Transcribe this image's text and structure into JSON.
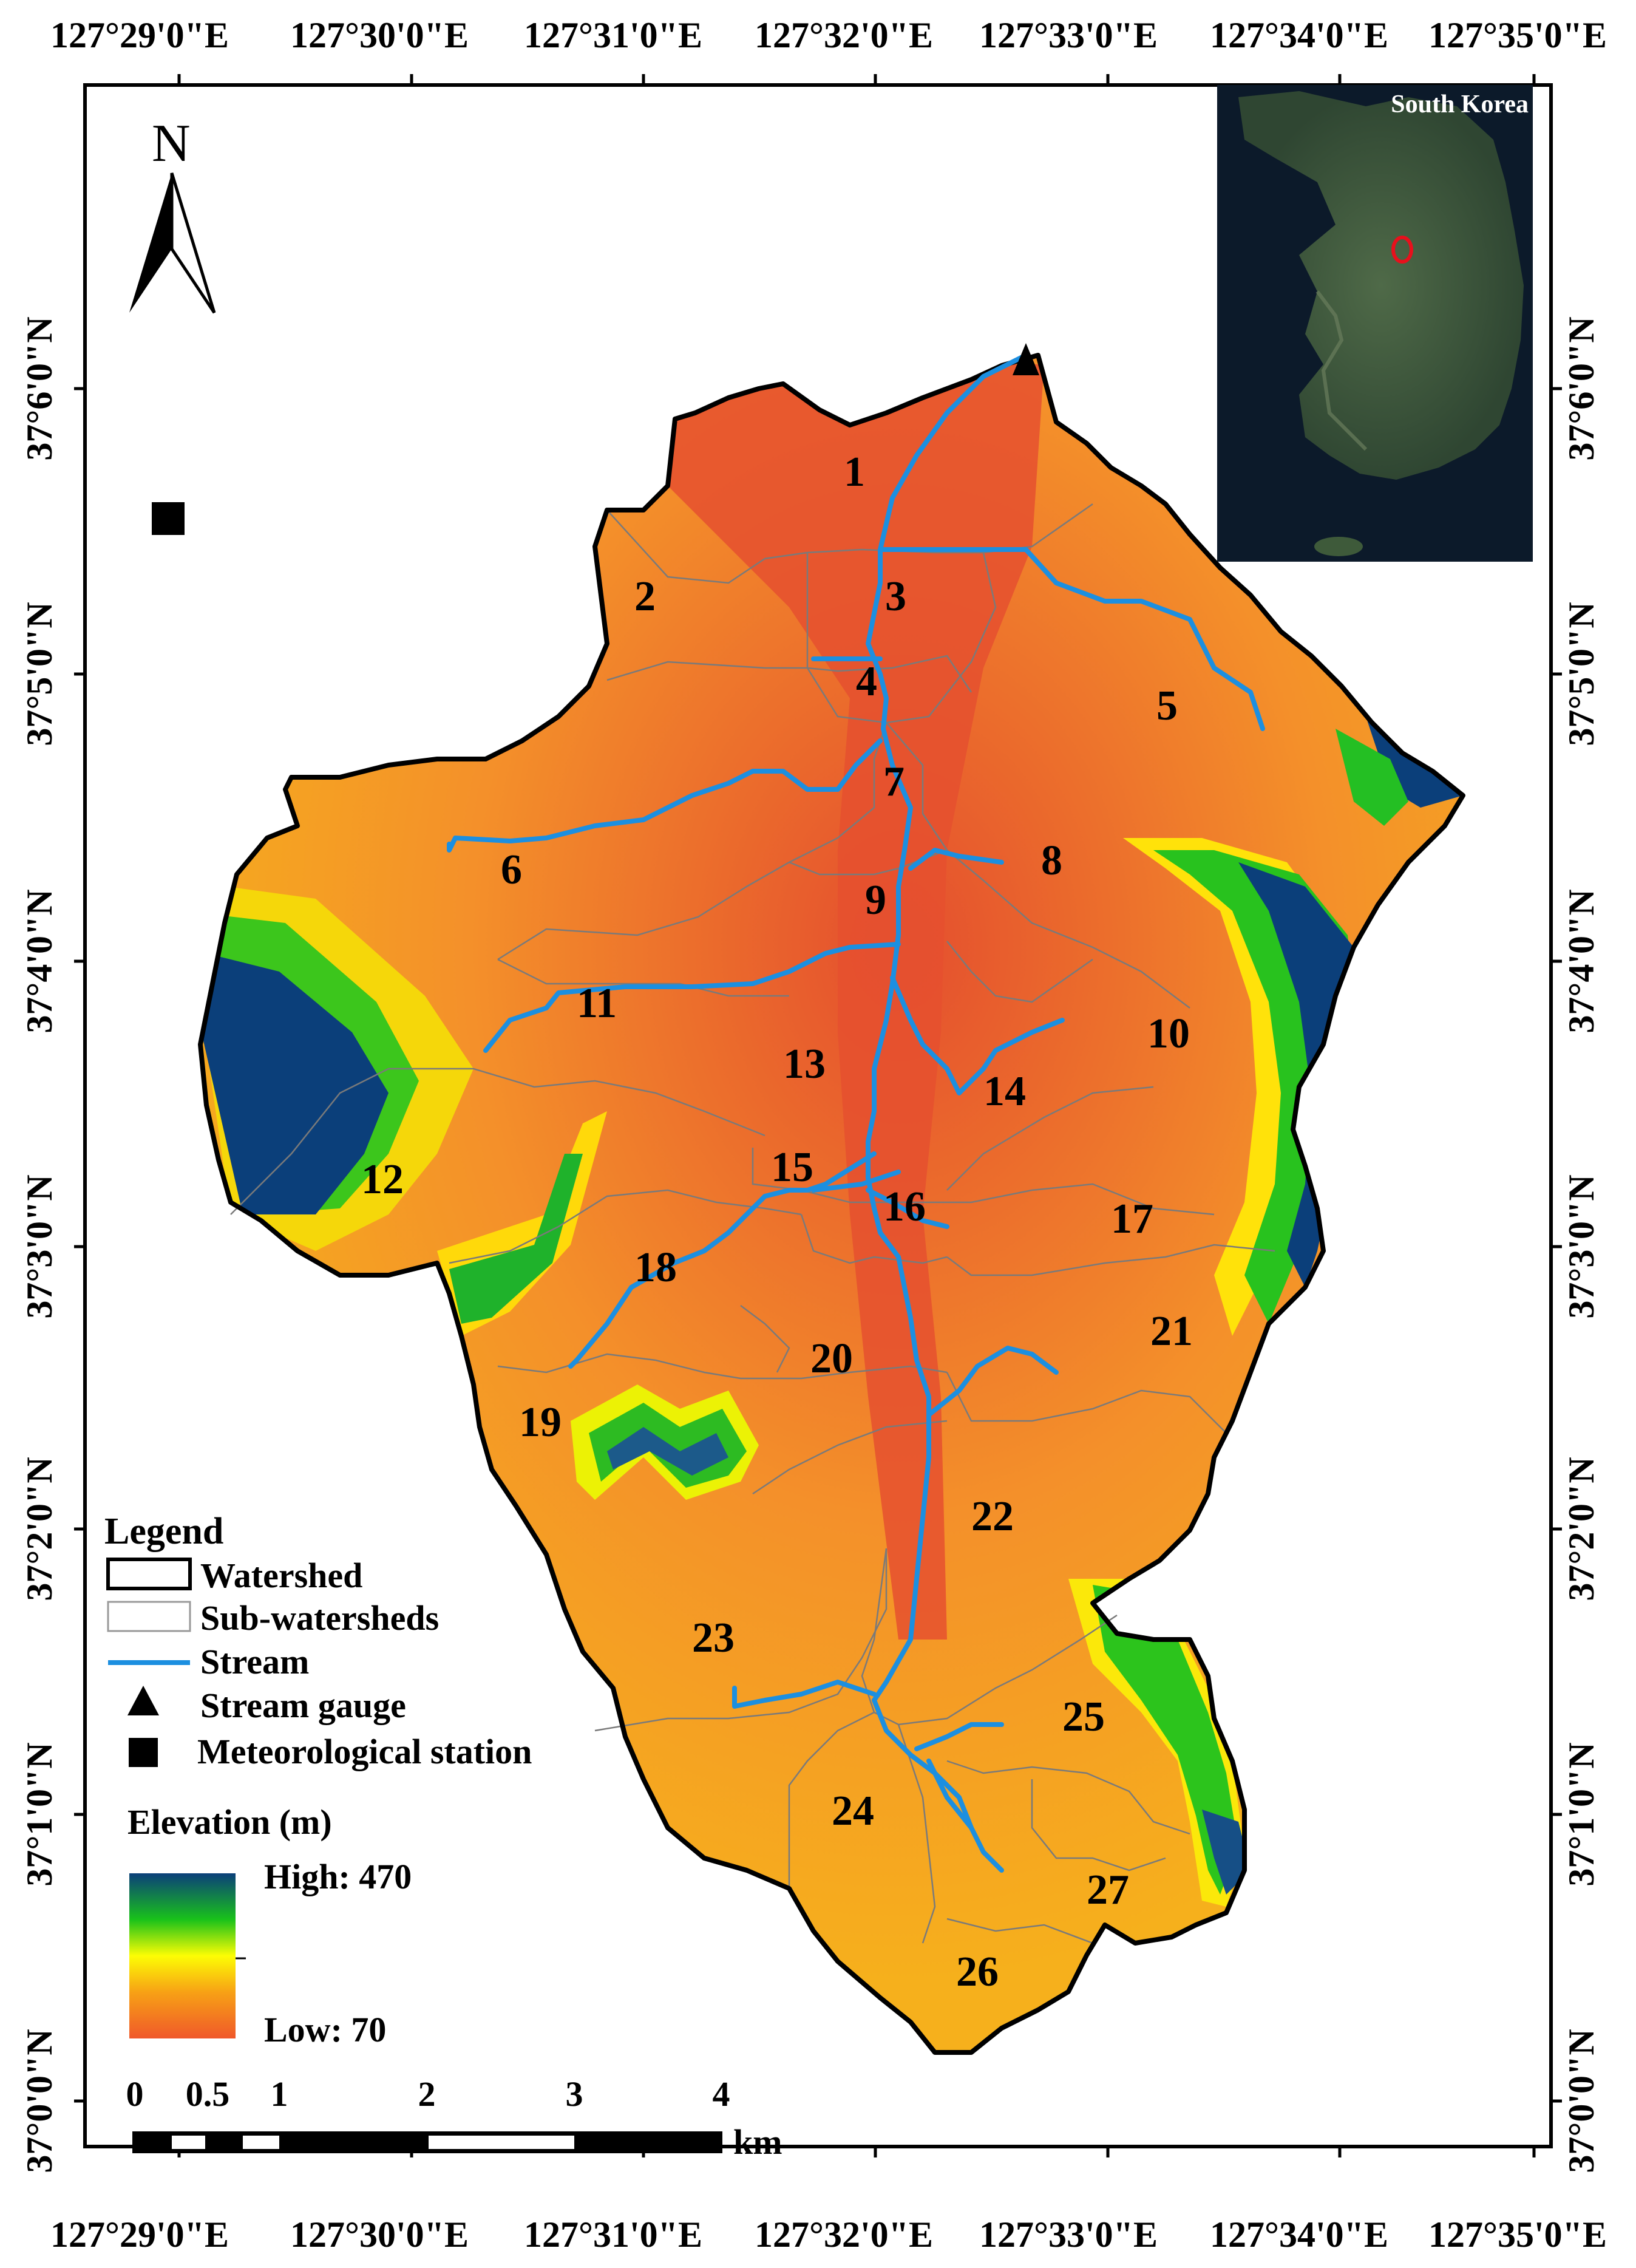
{
  "longitude_labels": [
    "127°29'0\"E",
    "127°30'0\"E",
    "127°31'0\"E",
    "127°32'0\"E",
    "127°33'0\"E",
    "127°34'0\"E",
    "127°35'0\"E"
  ],
  "latitude_labels": [
    "37°6'0\"N",
    "37°5'0\"N",
    "37°4'0\"N",
    "37°3'0\"N",
    "37°2'0\"N",
    "37°1'0\"N",
    "37°0'0\"N"
  ],
  "north_arrow_letter": "N",
  "inset": {
    "title": "South Korea",
    "marker_color": "#e8101c"
  },
  "subwatersheds": [
    "1",
    "2",
    "3",
    "4",
    "5",
    "6",
    "7",
    "8",
    "9",
    "10",
    "11",
    "12",
    "13",
    "14",
    "15",
    "16",
    "17",
    "18",
    "19",
    "20",
    "21",
    "22",
    "23",
    "24",
    "25",
    "26",
    "27"
  ],
  "legend": {
    "title": "Legend",
    "items": [
      {
        "label": "Watershed",
        "icon": "watershed-outline-swatch"
      },
      {
        "label": "Sub-watersheds",
        "icon": "subwatershed-outline-swatch"
      },
      {
        "label": "Stream",
        "icon": "stream-line-swatch",
        "color": "#1c8fe0"
      },
      {
        "label": "Stream gauge",
        "icon": "triangle-icon"
      },
      {
        "label": "Meteorological station",
        "icon": "square-icon"
      }
    ],
    "elevation": {
      "title": "Elevation (m)",
      "high_label": "High: 470",
      "low_label": "Low: 70",
      "high": 470,
      "low": 70,
      "colors": [
        "#f0582a",
        "#f7a115",
        "#fdfd04",
        "#19c21a",
        "#0b3f7a"
      ]
    }
  },
  "scale_bar": {
    "ticks": [
      "0",
      "0.5",
      "1",
      "2",
      "3",
      "4"
    ],
    "unit": "km"
  },
  "colors": {
    "stream": "#1c8fe0",
    "frame": "#000000"
  }
}
